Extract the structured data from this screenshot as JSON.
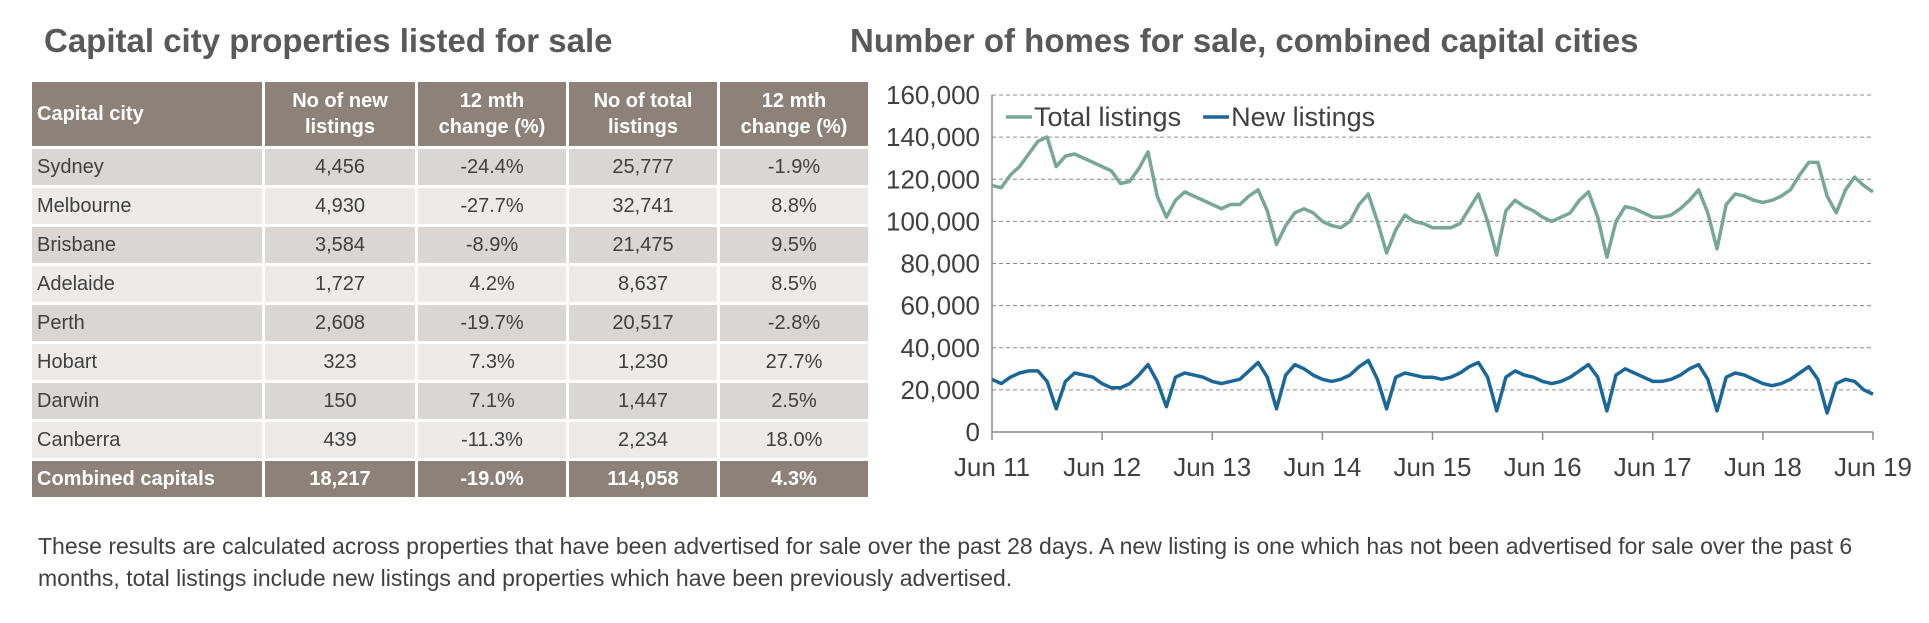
{
  "table": {
    "title": "Capital city properties listed for sale",
    "columns": [
      "Capital city",
      "No of new listings",
      "12 mth change (%)",
      "No of total listings",
      "12 mth change (%)"
    ],
    "rows": [
      [
        "Sydney",
        "4,456",
        "-24.4%",
        "25,777",
        "-1.9%"
      ],
      [
        "Melbourne",
        "4,930",
        "-27.7%",
        "32,741",
        "8.8%"
      ],
      [
        "Brisbane",
        "3,584",
        "-8.9%",
        "21,475",
        "9.5%"
      ],
      [
        "Adelaide",
        "1,727",
        "4.2%",
        "8,637",
        "8.5%"
      ],
      [
        "Perth",
        "2,608",
        "-19.7%",
        "20,517",
        "-2.8%"
      ],
      [
        "Hobart",
        "323",
        "7.3%",
        "1,230",
        "27.7%"
      ],
      [
        "Darwin",
        "150",
        "7.1%",
        "1,447",
        "2.5%"
      ],
      [
        "Canberra",
        "439",
        "-11.3%",
        "2,234",
        "18.0%"
      ]
    ],
    "total": [
      "Combined capitals",
      "18,217",
      "-19.0%",
      "114,058",
      "4.3%"
    ]
  },
  "chart_data": {
    "type": "line",
    "title": "Number of homes for sale, combined capital cities",
    "x": [
      "2011-06",
      "2011-07",
      "2011-08",
      "2011-09",
      "2011-10",
      "2011-11",
      "2011-12",
      "2012-01",
      "2012-02",
      "2012-03",
      "2012-04",
      "2012-05",
      "2012-06",
      "2012-07",
      "2012-08",
      "2012-09",
      "2012-10",
      "2012-11",
      "2012-12",
      "2013-01",
      "2013-02",
      "2013-03",
      "2013-04",
      "2013-05",
      "2013-06",
      "2013-07",
      "2013-08",
      "2013-09",
      "2013-10",
      "2013-11",
      "2013-12",
      "2014-01",
      "2014-02",
      "2014-03",
      "2014-04",
      "2014-05",
      "2014-06",
      "2014-07",
      "2014-08",
      "2014-09",
      "2014-10",
      "2014-11",
      "2014-12",
      "2015-01",
      "2015-02",
      "2015-03",
      "2015-04",
      "2015-05",
      "2015-06",
      "2015-07",
      "2015-08",
      "2015-09",
      "2015-10",
      "2015-11",
      "2015-12",
      "2016-01",
      "2016-02",
      "2016-03",
      "2016-04",
      "2016-05",
      "2016-06",
      "2016-07",
      "2016-08",
      "2016-09",
      "2016-10",
      "2016-11",
      "2016-12",
      "2017-01",
      "2017-02",
      "2017-03",
      "2017-04",
      "2017-05",
      "2017-06",
      "2017-07",
      "2017-08",
      "2017-09",
      "2017-10",
      "2017-11",
      "2017-12",
      "2018-01",
      "2018-02",
      "2018-03",
      "2018-04",
      "2018-05",
      "2018-06",
      "2018-07",
      "2018-08",
      "2018-09",
      "2018-10",
      "2018-11",
      "2018-12",
      "2019-01",
      "2019-02",
      "2019-03",
      "2019-04",
      "2019-05",
      "2019-06"
    ],
    "series": [
      {
        "name": "Total listings",
        "color": "#78a697",
        "values": [
          117000,
          116000,
          122000,
          126000,
          132000,
          138000,
          140000,
          126000,
          131000,
          132000,
          130000,
          128000,
          126000,
          124000,
          118000,
          119000,
          125000,
          133000,
          112000,
          102000,
          110000,
          114000,
          112000,
          110000,
          108000,
          106000,
          108000,
          108000,
          112000,
          115000,
          105000,
          89000,
          98000,
          104000,
          106000,
          104000,
          100000,
          98000,
          97000,
          100000,
          108000,
          113000,
          100000,
          85000,
          96000,
          103000,
          100000,
          99000,
          97000,
          97000,
          97000,
          99000,
          106000,
          113000,
          100000,
          84000,
          105000,
          110000,
          107000,
          105000,
          102000,
          100000,
          102000,
          104000,
          110000,
          114000,
          102000,
          83000,
          100000,
          107000,
          106000,
          104000,
          102000,
          102000,
          103000,
          106000,
          110000,
          115000,
          104000,
          87000,
          108000,
          113000,
          112000,
          110000,
          109000,
          110000,
          112000,
          115000,
          122000,
          128000,
          128000,
          112000,
          104000,
          115000,
          121000,
          117000,
          114000
        ]
      },
      {
        "name": "New listings",
        "color": "#1b6797",
        "values": [
          25000,
          23000,
          26000,
          28000,
          29000,
          29000,
          24000,
          11000,
          24000,
          28000,
          27000,
          26000,
          23000,
          21000,
          21000,
          23000,
          27000,
          32000,
          24000,
          12000,
          26000,
          28000,
          27000,
          26000,
          24000,
          23000,
          24000,
          25000,
          29000,
          33000,
          26000,
          11000,
          27000,
          32000,
          30000,
          27000,
          25000,
          24000,
          25000,
          27000,
          31000,
          34000,
          25000,
          11000,
          26000,
          28000,
          27000,
          26000,
          26000,
          25000,
          26000,
          28000,
          31000,
          33000,
          26000,
          10000,
          26000,
          29000,
          27000,
          26000,
          24000,
          23000,
          24000,
          26000,
          29000,
          32000,
          26000,
          10000,
          27000,
          30000,
          28000,
          26000,
          24000,
          24000,
          25000,
          27000,
          30000,
          32000,
          25000,
          10000,
          26000,
          28000,
          27000,
          25000,
          23000,
          22000,
          23000,
          25000,
          28000,
          31000,
          25000,
          9000,
          23000,
          25000,
          24000,
          20000,
          18000
        ]
      }
    ],
    "xlim": [
      "2011-06",
      "2019-06"
    ],
    "xticks": [
      {
        "value": "2011-06",
        "label": "Jun 11"
      },
      {
        "value": "2012-06",
        "label": "Jun 12"
      },
      {
        "value": "2013-06",
        "label": "Jun 13"
      },
      {
        "value": "2014-06",
        "label": "Jun 14"
      },
      {
        "value": "2015-06",
        "label": "Jun 15"
      },
      {
        "value": "2016-06",
        "label": "Jun 16"
      },
      {
        "value": "2017-06",
        "label": "Jun 17"
      },
      {
        "value": "2018-06",
        "label": "Jun 18"
      },
      {
        "value": "2019-06",
        "label": "Jun 19"
      }
    ],
    "ylim": [
      0,
      160000
    ],
    "yticks": [
      0,
      {
        "value": 20000,
        "label": "20,000"
      },
      {
        "value": 40000,
        "label": "40,000"
      },
      {
        "value": 60000,
        "label": "60,000"
      },
      {
        "value": 80000,
        "label": "80,000"
      },
      {
        "value": 100000,
        "label": "100,000"
      },
      {
        "value": 120000,
        "label": "120,000"
      },
      {
        "value": 140000,
        "label": "140,000"
      },
      {
        "value": 160000,
        "label": "160,000"
      }
    ],
    "grid": true,
    "legend": "top-left"
  },
  "note": "These results are calculated across properties that have been advertised for sale over the past 28 days.  A new listing is one which has not been advertised for sale over the past 6 months, total listings include new listings and properties which have been previously advertised."
}
